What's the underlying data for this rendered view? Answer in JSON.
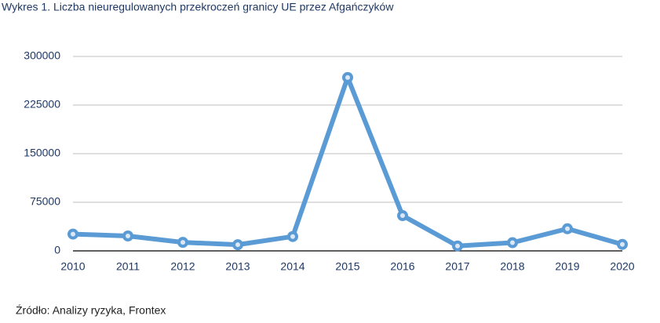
{
  "chart_data": {
    "type": "line",
    "title": "Wykres 1. Liczba nieuregulowanych przekroczeń granicy UE przez Afgańczyków",
    "source": "Źródło: Analizy ryzyka, Frontex",
    "x": [
      2010,
      2011,
      2012,
      2013,
      2014,
      2015,
      2016,
      2017,
      2018,
      2019,
      2020
    ],
    "series": [
      {
        "color": "#5b9bd5",
        "values": [
          25918,
          22993,
          13169,
          9494,
          22132,
          267485,
          54366,
          7576,
          12666,
          34154,
          10006
        ]
      }
    ],
    "xlim": [
      2010,
      2020
    ],
    "xticks": [
      2010,
      2011,
      2012,
      2013,
      2014,
      2015,
      2016,
      2017,
      2018,
      2019,
      2020
    ],
    "ylim": [
      0,
      300000
    ],
    "yticks": [
      0,
      75000,
      150000,
      225000,
      300000
    ],
    "grid": true
  }
}
